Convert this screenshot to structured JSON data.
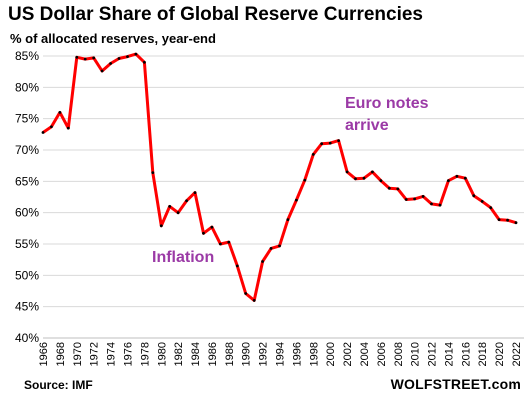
{
  "title": "US Dollar Share of Global Reserve Currencies",
  "subtitle": "% of allocated reserves, year-end",
  "source": "Source: IMF",
  "brand": "WOLFSTREET.com",
  "colors": {
    "line": "#ff0000",
    "marker": "#000000",
    "grid": "#d9d9d9",
    "annotation": "#9b3aa6"
  },
  "chart_data": {
    "type": "line",
    "title": "US Dollar Share of Global Reserve Currencies",
    "ylabel": "% of allocated reserves, year-end",
    "ylim": [
      40,
      85
    ],
    "yticks": [
      "40%",
      "45%",
      "50%",
      "55%",
      "60%",
      "65%",
      "70%",
      "75%",
      "80%",
      "85%"
    ],
    "xlim": [
      1966,
      2022
    ],
    "xticks": [
      "1966",
      "1968",
      "1970",
      "1972",
      "1974",
      "1976",
      "1978",
      "1980",
      "1982",
      "1984",
      "1986",
      "1988",
      "1990",
      "1992",
      "1994",
      "1996",
      "1998",
      "2000",
      "2002",
      "2004",
      "2006",
      "2008",
      "2010",
      "2012",
      "2014",
      "2016",
      "2018",
      "2020",
      "2022"
    ],
    "grid": "horizontal",
    "series": [
      {
        "x": [
          1966,
          1967,
          1968,
          1969,
          1970,
          1971,
          1972,
          1973,
          1974,
          1975,
          1976,
          1977,
          1978,
          1979,
          1980,
          1981,
          1982,
          1983,
          1984,
          1985,
          1986,
          1987,
          1988,
          1989,
          1990,
          1991,
          1992,
          1993,
          1994,
          1995,
          1996,
          1997,
          1998,
          1999,
          2000,
          2001,
          2002,
          2003,
          2004,
          2005,
          2006,
          2007,
          2008,
          2009,
          2010,
          2011,
          2012,
          2013,
          2014,
          2015,
          2016,
          2017,
          2018,
          2019,
          2020,
          2021,
          2022
        ],
        "values": [
          72.8,
          73.7,
          76.0,
          73.5,
          84.8,
          84.5,
          84.7,
          82.6,
          83.8,
          84.6,
          84.9,
          85.3,
          84.0,
          66.4,
          57.9,
          61.0,
          60.0,
          61.9,
          63.2,
          56.7,
          57.7,
          55.0,
          55.3,
          51.5,
          47.1,
          46.0,
          52.2,
          54.3,
          54.7,
          58.9,
          62.0,
          65.2,
          69.3,
          71.0,
          71.1,
          71.5,
          66.5,
          65.4,
          65.5,
          66.5,
          65.1,
          63.9,
          63.8,
          62.1,
          62.2,
          62.6,
          61.4,
          61.2,
          65.1,
          65.8,
          65.5,
          62.7,
          61.8,
          60.8,
          58.9,
          58.8,
          58.4
        ]
      }
    ],
    "annotations": [
      "Euro notes\narrive",
      "Inflation"
    ]
  }
}
